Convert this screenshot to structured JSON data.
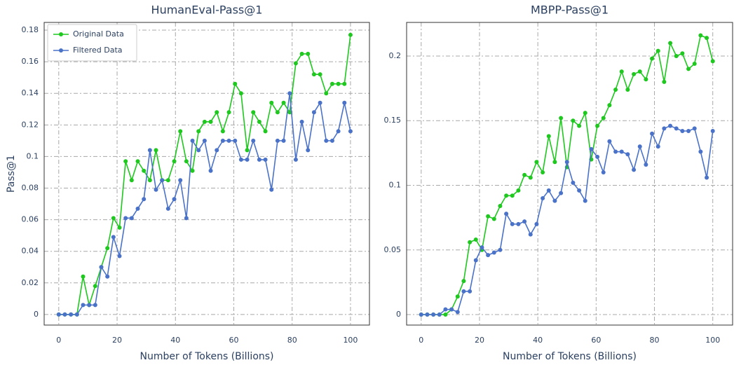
{
  "chart_data": [
    {
      "type": "line",
      "title": "HumanEval-Pass@1",
      "xlabel": "Number of Tokens (Billions)",
      "ylabel": "Pass@1",
      "x": [
        0,
        2.08,
        4.17,
        6.25,
        8.33,
        10.42,
        12.5,
        14.58,
        16.67,
        18.75,
        20.83,
        22.92,
        25,
        27.08,
        29.17,
        31.25,
        33.33,
        35.42,
        37.5,
        39.58,
        41.67,
        43.75,
        45.83,
        47.92,
        50,
        52.08,
        54.17,
        56.25,
        58.33,
        60.42,
        62.5,
        64.58,
        66.67,
        68.75,
        70.83,
        72.92,
        75,
        77.08,
        79.17,
        81.25,
        83.33,
        85.42,
        87.5,
        89.58,
        91.67,
        93.75,
        95.83,
        97.92,
        100
      ],
      "series": [
        {
          "name": "Original Data",
          "color": "#1ec81e",
          "values": [
            0,
            0,
            0,
            0,
            0.024,
            0.006,
            0.018,
            0.03,
            0.042,
            0.061,
            0.055,
            0.097,
            0.085,
            0.097,
            0.091,
            0.085,
            0.104,
            0.085,
            0.085,
            0.097,
            0.116,
            0.097,
            0.091,
            0.116,
            0.122,
            0.122,
            0.128,
            0.116,
            0.128,
            0.146,
            0.14,
            0.104,
            0.128,
            0.122,
            0.116,
            0.134,
            0.128,
            0.134,
            0.128,
            0.159,
            0.165,
            0.165,
            0.152,
            0.152,
            0.14,
            0.146,
            0.146,
            0.146,
            0.177
          ]
        },
        {
          "name": "Filtered Data",
          "color": "#4a72c8",
          "values": [
            0,
            0,
            0,
            0,
            0.006,
            0.006,
            0.006,
            0.03,
            0.024,
            0.049,
            0.037,
            0.061,
            0.061,
            0.067,
            0.073,
            0.104,
            0.079,
            0.085,
            0.067,
            0.073,
            0.085,
            0.061,
            0.11,
            0.104,
            0.11,
            0.091,
            0.104,
            0.11,
            0.11,
            0.11,
            0.098,
            0.098,
            0.11,
            0.098,
            0.098,
            0.079,
            0.11,
            0.11,
            0.14,
            0.098,
            0.122,
            0.104,
            0.128,
            0.134,
            0.11,
            0.11,
            0.116,
            0.134,
            0.116
          ]
        }
      ],
      "xlim": [
        -5,
        106.5
      ],
      "xticks": [
        0,
        20,
        40,
        60,
        80,
        100
      ],
      "ylim": [
        -0.0067,
        0.1849
      ],
      "yticks": [
        0,
        0.02,
        0.04,
        0.06,
        0.08,
        0.1,
        0.12,
        0.14,
        0.16,
        0.18
      ],
      "grid": true,
      "legend": "upper left"
    },
    {
      "type": "line",
      "title": "MBPP-Pass@1",
      "xlabel": "Number of Tokens (Billions)",
      "x": [
        0,
        2.08,
        4.17,
        6.25,
        8.33,
        10.42,
        12.5,
        14.58,
        16.67,
        18.75,
        20.83,
        22.92,
        25,
        27.08,
        29.17,
        31.25,
        33.33,
        35.42,
        37.5,
        39.58,
        41.67,
        43.75,
        45.83,
        47.92,
        50,
        52.08,
        54.17,
        56.25,
        58.33,
        60.42,
        62.5,
        64.58,
        66.67,
        68.75,
        70.83,
        72.92,
        75,
        77.08,
        79.17,
        81.25,
        83.33,
        85.42,
        87.5,
        89.58,
        91.67,
        93.75,
        95.83,
        97.92,
        100
      ],
      "series": [
        {
          "color": "#1ec81e",
          "values": [
            0,
            0,
            0,
            0,
            0,
            0.004,
            0.014,
            0.026,
            0.056,
            0.058,
            0.05,
            0.076,
            0.074,
            0.084,
            0.092,
            0.092,
            0.096,
            0.108,
            0.106,
            0.118,
            0.11,
            0.138,
            0.118,
            0.152,
            0.114,
            0.15,
            0.146,
            0.156,
            0.12,
            0.146,
            0.152,
            0.162,
            0.174,
            0.188,
            0.174,
            0.186,
            0.188,
            0.182,
            0.198,
            0.204,
            0.18,
            0.21,
            0.2,
            0.202,
            0.19,
            0.194,
            0.216,
            0.214,
            0.196
          ]
        },
        {
          "color": "#4a72c8",
          "values": [
            0,
            0,
            0,
            0,
            0.004,
            0.004,
            0.002,
            0.018,
            0.018,
            0.042,
            0.052,
            0.046,
            0.048,
            0.05,
            0.078,
            0.07,
            0.07,
            0.072,
            0.062,
            0.07,
            0.09,
            0.096,
            0.088,
            0.094,
            0.118,
            0.102,
            0.096,
            0.088,
            0.128,
            0.122,
            0.11,
            0.134,
            0.126,
            0.126,
            0.124,
            0.112,
            0.13,
            0.116,
            0.14,
            0.13,
            0.144,
            0.146,
            0.144,
            0.142,
            0.142,
            0.144,
            0.126,
            0.106,
            0.142
          ]
        }
      ],
      "xlim": [
        -5,
        106.8
      ],
      "xticks": [
        0,
        20,
        40,
        60,
        80,
        100
      ],
      "ylim": [
        -0.0081,
        0.226
      ],
      "yticks": [
        0,
        0.05,
        0.1,
        0.15,
        0.2
      ],
      "grid": true
    }
  ]
}
